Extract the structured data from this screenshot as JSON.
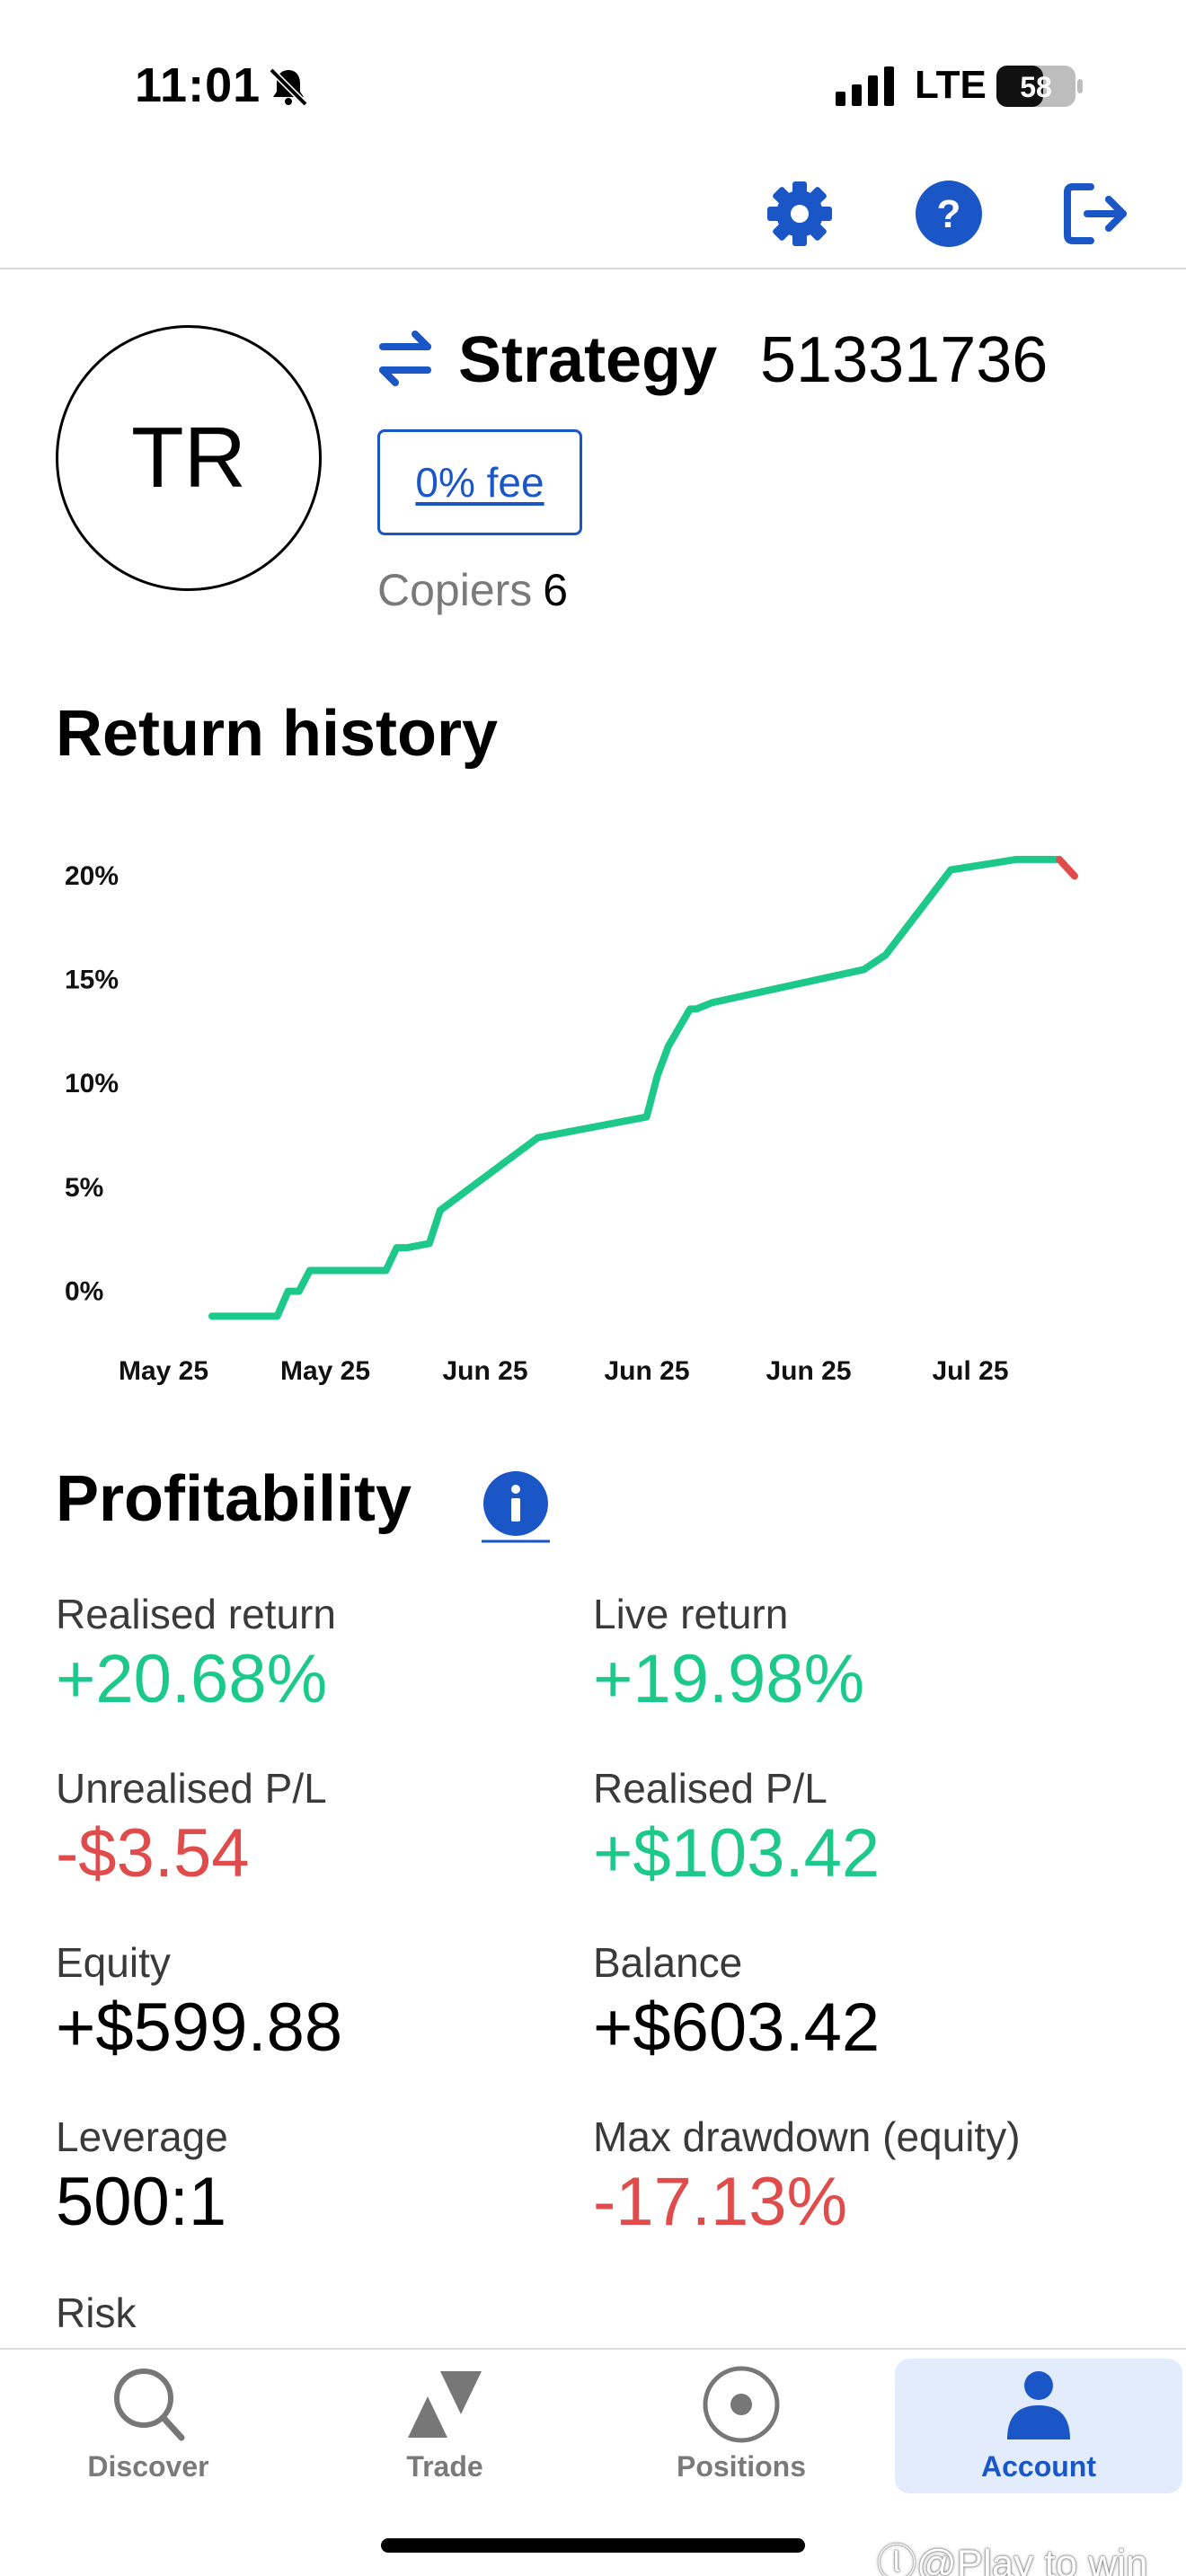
{
  "status_bar": {
    "time": "11:01",
    "network": "LTE",
    "battery": "58"
  },
  "header": {
    "icons": [
      "gear-icon",
      "help-icon",
      "logout-icon"
    ],
    "accent": "#1a56c5"
  },
  "strategy": {
    "avatar_initials": "TR",
    "title": "Strategy",
    "id": "51331736",
    "fee_label": "0% fee",
    "copiers_label": "Copiers",
    "copiers_count": "6"
  },
  "return_history": {
    "title": "Return history"
  },
  "chart_data": {
    "type": "line",
    "title": "",
    "xlabel": "",
    "ylabel": "",
    "y_ticks": [
      "20%",
      "15%",
      "10%",
      "5%",
      "0%"
    ],
    "y_tick_values": [
      20,
      15,
      10,
      5,
      0
    ],
    "x_ticks": [
      "May 25",
      "May 25",
      "Jun 25",
      "Jun 25",
      "Jun 25",
      "Jul 25"
    ],
    "ylim": [
      -1.5,
      21
    ],
    "x": [
      0,
      3,
      3.5,
      4,
      4.5,
      8,
      8.5,
      9,
      10,
      10.5,
      15,
      20,
      20.5,
      21,
      22,
      22.3,
      23,
      30,
      31,
      34,
      37,
      39
    ],
    "series": [
      {
        "values": [
          -1.3,
          -1.3,
          -0.1,
          -0.1,
          0.9,
          0.9,
          2.0,
          2.0,
          2.2,
          3.8,
          7.3,
          8.3,
          10.3,
          11.7,
          13.5,
          13.5,
          13.8,
          15.4,
          16.1,
          20.2,
          20.7,
          20.7
        ],
        "color": "#1dc98a"
      },
      {
        "values": [
          20.7,
          19.9
        ],
        "x": [
          39,
          39.7
        ],
        "color": "#e04b4b"
      }
    ],
    "grid": false,
    "legend": "none"
  },
  "profitability": {
    "title": "Profitability",
    "info_icon": "info-icon",
    "metrics": [
      {
        "label": "Realised return",
        "value": "+20.68%",
        "tone": "pos"
      },
      {
        "label": "Live return",
        "value": "+19.98%",
        "tone": "pos"
      },
      {
        "label": "Unrealised P/L",
        "value": "-$3.54",
        "tone": "neg"
      },
      {
        "label": "Realised P/L",
        "value": "+$103.42",
        "tone": "pos"
      },
      {
        "label": "Equity",
        "value": "+$599.88",
        "tone": "neutral"
      },
      {
        "label": "Balance",
        "value": "+$603.42",
        "tone": "neutral"
      },
      {
        "label": "Leverage",
        "value": "500:1",
        "tone": "neutral"
      },
      {
        "label": "Max drawdown (equity)",
        "value": "-17.13%",
        "tone": "neg"
      }
    ],
    "risk_label": "Risk"
  },
  "bottom_nav": {
    "items": [
      {
        "label": "Discover",
        "icon": "search-icon"
      },
      {
        "label": "Trade",
        "icon": "trade-icon"
      },
      {
        "label": "Positions",
        "icon": "positions-icon"
      },
      {
        "label": "Account",
        "icon": "account-icon",
        "active": true
      }
    ]
  },
  "watermark": "ⓛ@Play to win"
}
